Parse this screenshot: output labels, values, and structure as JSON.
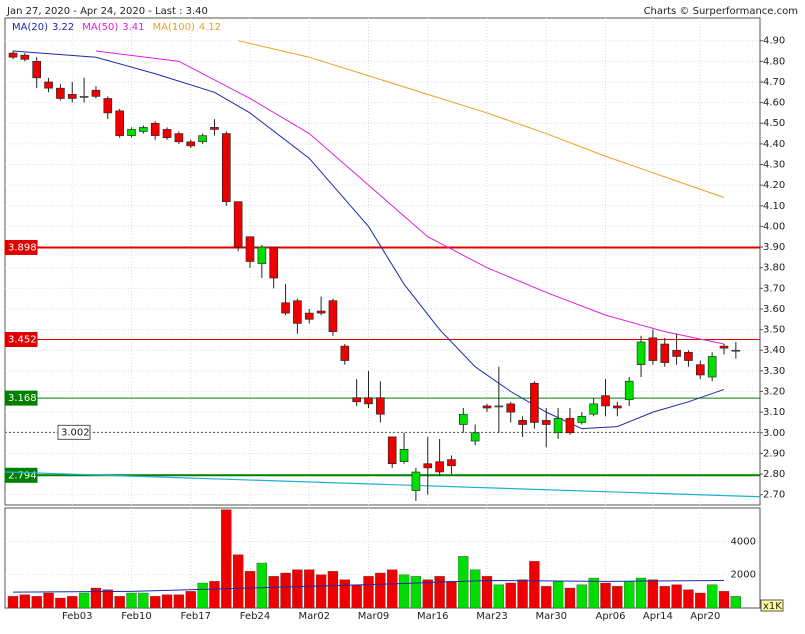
{
  "chart_data": {
    "type": "candlestick",
    "title": "Jan 27, 2020 - Apr 24, 2020 - Last : 3.40",
    "credit": "Charts © Surperformance.com",
    "open": [
      4.84,
      4.83,
      4.8,
      4.7,
      4.67,
      4.64,
      4.63,
      4.66,
      4.62,
      4.56,
      4.44,
      4.46,
      4.5,
      4.47,
      4.45,
      4.41,
      4.41,
      4.48,
      4.45,
      4.12,
      3.95,
      3.82,
      3.9,
      3.63,
      3.64,
      3.58,
      3.59,
      3.64,
      3.42,
      3.17,
      3.17,
      3.17,
      2.98,
      2.86,
      2.72,
      2.85,
      2.86,
      2.87,
      3.04,
      2.96,
      3.13,
      3.13,
      3.14,
      3.06,
      3.24,
      3.06,
      3.0,
      3.07,
      3.05,
      3.09,
      3.18,
      3.13,
      3.16,
      3.33,
      3.46,
      3.43,
      3.4,
      3.39,
      3.33,
      3.27,
      3.42,
      3.4
    ],
    "high": [
      4.85,
      4.84,
      4.82,
      4.72,
      4.69,
      4.7,
      4.72,
      4.68,
      4.63,
      4.57,
      4.48,
      4.49,
      4.51,
      4.48,
      4.46,
      4.42,
      4.45,
      4.52,
      4.46,
      4.12,
      3.95,
      3.91,
      3.9,
      3.72,
      3.65,
      3.6,
      3.66,
      3.65,
      3.43,
      3.26,
      3.3,
      3.25,
      2.98,
      3.0,
      2.83,
      2.98,
      2.97,
      2.89,
      3.12,
      3.04,
      3.14,
      3.32,
      3.15,
      3.08,
      3.25,
      3.12,
      3.12,
      3.12,
      3.1,
      3.17,
      3.26,
      3.15,
      3.27,
      3.47,
      3.5,
      3.46,
      3.48,
      3.4,
      3.35,
      3.39,
      3.43,
      3.44
    ],
    "low": [
      4.81,
      4.8,
      4.67,
      4.65,
      4.61,
      4.6,
      4.6,
      4.62,
      4.52,
      4.43,
      4.43,
      4.45,
      4.42,
      4.42,
      4.4,
      4.38,
      4.4,
      4.44,
      4.1,
      3.88,
      3.8,
      3.75,
      3.7,
      3.57,
      3.48,
      3.53,
      3.57,
      3.47,
      3.33,
      3.13,
      3.12,
      3.05,
      2.83,
      2.85,
      2.67,
      2.7,
      2.79,
      2.8,
      3.0,
      2.94,
      3.1,
      3.0,
      3.05,
      2.98,
      3.02,
      2.93,
      2.97,
      2.99,
      3.04,
      3.08,
      3.08,
      3.08,
      3.13,
      3.27,
      3.33,
      3.32,
      3.33,
      3.32,
      3.26,
      3.25,
      3.38,
      3.36
    ],
    "close": [
      4.82,
      4.81,
      4.72,
      4.67,
      4.62,
      4.62,
      4.63,
      4.63,
      4.55,
      4.44,
      4.47,
      4.48,
      4.44,
      4.43,
      4.41,
      4.39,
      4.44,
      4.47,
      4.12,
      3.9,
      3.83,
      3.9,
      3.75,
      3.58,
      3.53,
      3.55,
      3.58,
      3.49,
      3.35,
      3.15,
      3.14,
      3.09,
      2.85,
      2.92,
      2.81,
      2.83,
      2.81,
      2.84,
      3.09,
      3.0,
      3.12,
      3.13,
      3.1,
      3.04,
      3.05,
      3.04,
      3.07,
      3.0,
      3.08,
      3.14,
      3.13,
      3.12,
      3.25,
      3.44,
      3.35,
      3.34,
      3.37,
      3.35,
      3.28,
      3.37,
      3.41,
      3.4
    ],
    "volume": [
      700,
      800,
      700,
      900,
      600,
      700,
      900,
      1200,
      1100,
      700,
      900,
      900,
      700,
      800,
      800,
      1000,
      1500,
      1600,
      5900,
      3200,
      2200,
      2700,
      1900,
      2100,
      2300,
      2300,
      2000,
      2200,
      1700,
      1400,
      1900,
      2100,
      2300,
      2000,
      1900,
      1700,
      1900,
      1600,
      3100,
      2300,
      1900,
      1400,
      1500,
      1700,
      2800,
      1300,
      1600,
      1200,
      1400,
      1800,
      1500,
      1300,
      1600,
      1800,
      1700,
      1300,
      1400,
      1100,
      900,
      1400,
      1000,
      700
    ],
    "series": [
      {
        "name": "MA(20)",
        "value_label": "3.22",
        "color": "#1a2aa8",
        "x": [
          0,
          7,
          12,
          17,
          20,
          25,
          30,
          33,
          36,
          39,
          42,
          45,
          48,
          51,
          54,
          57,
          60
        ],
        "values": [
          4.85,
          4.82,
          4.74,
          4.65,
          4.55,
          4.33,
          4.0,
          3.72,
          3.5,
          3.32,
          3.2,
          3.1,
          3.02,
          3.03,
          3.1,
          3.15,
          3.21
        ]
      },
      {
        "name": "MA(50)",
        "value_label": "3.41",
        "color": "#e020e0",
        "x": [
          7,
          14,
          20,
          25,
          30,
          35,
          40,
          45,
          50,
          55,
          60
        ],
        "values": [
          4.85,
          4.8,
          4.62,
          4.45,
          4.2,
          3.95,
          3.8,
          3.68,
          3.57,
          3.49,
          3.43
        ]
      },
      {
        "name": "MA(100)",
        "value_label": "4.12",
        "color": "#f0a020",
        "x": [
          19,
          25,
          30,
          35,
          40,
          45,
          50,
          55,
          60
        ],
        "values": [
          4.9,
          4.82,
          4.73,
          4.64,
          4.55,
          4.45,
          4.34,
          4.24,
          4.14
        ]
      }
    ],
    "volume_average": {
      "color": "#1a2aa8",
      "x": [
        0,
        10,
        20,
        30,
        40,
        50,
        60
      ],
      "values": [
        950,
        1000,
        1200,
        1400,
        1650,
        1600,
        1650
      ]
    },
    "levels": [
      {
        "value": 3.898,
        "color": "#e00000",
        "width": 2,
        "box": "#e00000"
      },
      {
        "value": 3.452,
        "color": "#e00000",
        "width": 1,
        "box": "#e00000"
      },
      {
        "value": 3.168,
        "color": "#008000",
        "width": 1,
        "box": "#008000"
      },
      {
        "value": 3.002,
        "color": "#555555",
        "width": 1,
        "box": "#ffffff",
        "dashed": true
      },
      {
        "value": 2.794,
        "color": "#008000",
        "width": 2,
        "box": "#008000"
      }
    ],
    "trendline": {
      "color": "#20b0d0",
      "values": [
        2.81,
        2.69
      ]
    },
    "ylim": [
      2.65,
      5.01
    ],
    "yticks": [
      {
        "value": 4.9,
        "label": "4.90"
      },
      {
        "value": 4.8,
        "label": "4.80"
      },
      {
        "value": 4.7,
        "label": "4.70"
      },
      {
        "value": 4.6,
        "label": "4.60"
      },
      {
        "value": 4.5,
        "label": "4.50"
      },
      {
        "value": 4.4,
        "label": "4.40"
      },
      {
        "value": 4.3,
        "label": "4.30"
      },
      {
        "value": 4.2,
        "label": "4.20"
      },
      {
        "value": 4.1,
        "label": "4.10"
      },
      {
        "value": 4.0,
        "label": "4.00"
      },
      {
        "value": 3.9,
        "label": "3.90"
      },
      {
        "value": 3.8,
        "label": "3.80"
      },
      {
        "value": 3.7,
        "label": "3.70"
      },
      {
        "value": 3.6,
        "label": "3.60"
      },
      {
        "value": 3.5,
        "label": "3.50"
      },
      {
        "value": 3.4,
        "label": "3.40"
      },
      {
        "value": 3.3,
        "label": "3.30"
      },
      {
        "value": 3.2,
        "label": "3.20"
      },
      {
        "value": 3.1,
        "label": "3.10"
      },
      {
        "value": 3.0,
        "label": "3.00"
      },
      {
        "value": 2.9,
        "label": "2.90"
      },
      {
        "value": 2.8,
        "label": "2.80"
      },
      {
        "value": 2.7,
        "label": "2.70"
      }
    ],
    "vlim": [
      0,
      6000
    ],
    "vticks": [
      2000,
      4000
    ],
    "volume_unit": "x1K",
    "xticks": [
      {
        "value": 5,
        "label": "Feb03"
      },
      {
        "value": 10,
        "label": "Feb10"
      },
      {
        "value": 15,
        "label": "Feb17"
      },
      {
        "value": 20,
        "label": "Feb24"
      },
      {
        "value": 25,
        "label": "Mar02"
      },
      {
        "value": 30,
        "label": "Mar09"
      },
      {
        "value": 35,
        "label": "Mar16"
      },
      {
        "value": 40,
        "label": "Mar23"
      },
      {
        "value": 45,
        "label": "Mar30"
      },
      {
        "value": 50,
        "label": "Apr06"
      },
      {
        "value": 54,
        "label": "Apr14"
      },
      {
        "value": 58,
        "label": "Apr20"
      }
    ],
    "grid": true
  }
}
